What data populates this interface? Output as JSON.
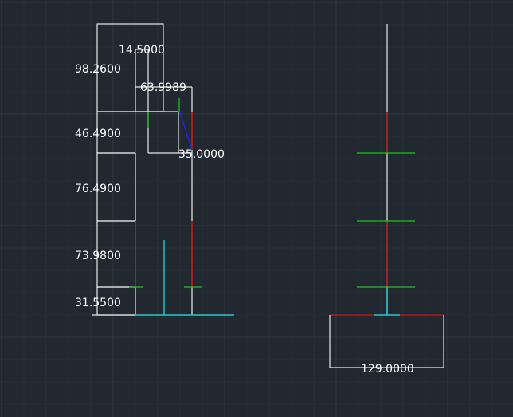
{
  "drawing": {
    "dimensions": {
      "d_98_26": "98.2600",
      "d_14_5": "14.5000",
      "d_63_9989": "63.9989",
      "d_46_49": "46.4900",
      "d_35": "35.0000",
      "d_76_49": "76.4900",
      "d_73_98": "73.9800",
      "d_31_55": "31.5500",
      "d_129": "129.0000"
    },
    "colors": {
      "background": "#212830",
      "outline": "#e8e8e8",
      "red_line": "#b01818",
      "green_line": "#1fc01f",
      "blue_line": "#1a2ad0",
      "cyan_line": "#27c8d0"
    }
  }
}
